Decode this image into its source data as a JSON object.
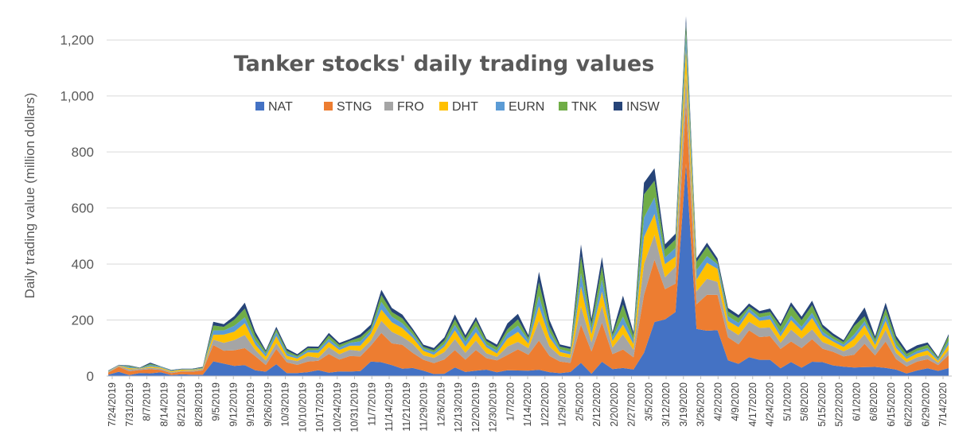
{
  "chart_data": {
    "type": "area",
    "stacked": true,
    "title": "Tanker stocks' daily trading values",
    "xlabel": "",
    "ylabel": "Daily trading value (million dollars)",
    "ylim": [
      0,
      1300
    ],
    "yticks": [
      0,
      200,
      400,
      600,
      800,
      1000,
      1200
    ],
    "ytick_labels": [
      "0",
      "200",
      "400",
      "600",
      "800",
      "1,000",
      "1,200"
    ],
    "grid": true,
    "legend_position": "top-center",
    "x_labels": [
      "7/24/2019",
      "7/31/2019",
      "8/7/2019",
      "8/14/2019",
      "8/21/2019",
      "8/28/2019",
      "9/5/2019",
      "9/12/2019",
      "9/19/2019",
      "9/26/2019",
      "10/3/2019",
      "10/10/2019",
      "10/17/2019",
      "10/24/2019",
      "10/31/2019",
      "11/7/2019",
      "11/14/2019",
      "11/21/2019",
      "11/29/2019",
      "12/6/2019",
      "12/13/2019",
      "12/20/2019",
      "12/30/2019",
      "1/7/2020",
      "1/14/2020",
      "1/22/2020",
      "1/29/2020",
      "2/5/2020",
      "2/12/2020",
      "2/20/2020",
      "2/27/2020",
      "3/5/2020",
      "3/12/2020",
      "3/19/2020",
      "3/26/2020",
      "4/2/2020",
      "4/9/2020",
      "4/17/2020",
      "4/24/2020",
      "5/1/2020",
      "5/8/2020",
      "5/15/2020",
      "5/22/2020",
      "6/1/2020",
      "6/8/2020",
      "6/15/2020",
      "6/22/2020",
      "6/29/2020",
      "7/14/2020"
    ],
    "total_values": [
      20,
      40,
      38,
      30,
      48,
      35,
      22,
      26,
      26,
      33,
      194,
      185,
      214,
      262,
      158,
      92,
      176,
      98,
      78,
      106,
      105,
      154,
      118,
      132,
      149,
      184,
      308,
      243,
      219,
      168,
      112,
      100,
      138,
      220,
      146,
      211,
      133,
      112,
      188,
      222,
      146,
      372,
      200,
      113,
      104,
      470,
      204,
      425,
      156,
      287,
      156,
      690,
      742,
      470,
      508,
      1285,
      420,
      476,
      420,
      243,
      218,
      259,
      232,
      241,
      186,
      263,
      212,
      269,
      184,
      152,
      128,
      190,
      245,
      142,
      262,
      144,
      90,
      110,
      120,
      68,
      150
    ],
    "series": [
      {
        "name": "NAT",
        "color": "#4472C4",
        "shares": [
          0.22,
          0.38,
          0.1,
          0.35,
          0.2,
          0.38,
          0.17,
          0.25,
          0.18,
          0.14,
          0.27,
          0.24,
          0.17,
          0.15,
          0.13,
          0.17,
          0.24,
          0.11,
          0.14,
          0.13,
          0.2,
          0.08,
          0.14,
          0.12,
          0.12,
          0.28,
          0.16,
          0.16,
          0.12,
          0.17,
          0.17,
          0.07,
          0.06,
          0.14,
          0.1,
          0.09,
          0.17,
          0.12,
          0.11,
          0.09,
          0.13,
          0.06,
          0.07,
          0.09,
          0.14,
          0.1,
          0.04,
          0.12,
          0.16,
          0.1,
          0.15,
          0.12,
          0.26,
          0.43,
          0.45,
          0.59,
          0.4,
          0.34,
          0.39,
          0.23,
          0.2,
          0.26,
          0.25,
          0.24,
          0.15,
          0.19,
          0.14,
          0.19,
          0.27,
          0.25,
          0.26,
          0.16,
          0.13,
          0.23,
          0.11,
          0.16,
          0.1,
          0.18,
          0.23,
          0.27,
          0.19
        ]
      },
      {
        "name": "STNG",
        "color": "#ED7D31",
        "shares": [
          0.4,
          0.44,
          0.35,
          0.37,
          0.31,
          0.25,
          0.29,
          0.37,
          0.42,
          0.47,
          0.3,
          0.25,
          0.26,
          0.23,
          0.32,
          0.26,
          0.31,
          0.39,
          0.37,
          0.36,
          0.32,
          0.43,
          0.36,
          0.42,
          0.35,
          0.31,
          0.34,
          0.32,
          0.39,
          0.32,
          0.35,
          0.39,
          0.37,
          0.28,
          0.3,
          0.35,
          0.31,
          0.38,
          0.29,
          0.34,
          0.39,
          0.28,
          0.29,
          0.37,
          0.31,
          0.29,
          0.39,
          0.33,
          0.34,
          0.23,
          0.28,
          0.3,
          0.3,
          0.23,
          0.2,
          0.17,
          0.21,
          0.27,
          0.3,
          0.34,
          0.32,
          0.37,
          0.35,
          0.35,
          0.37,
          0.28,
          0.33,
          0.3,
          0.26,
          0.32,
          0.29,
          0.24,
          0.34,
          0.29,
          0.36,
          0.26,
          0.28,
          0.29,
          0.27,
          0.3,
          0.31
        ]
      },
      {
        "name": "FRO",
        "color": "#A5A5A5",
        "shares": [
          0.12,
          0.09,
          0.18,
          0.13,
          0.11,
          0.13,
          0.17,
          0.09,
          0.14,
          0.13,
          0.1,
          0.15,
          0.17,
          0.18,
          0.14,
          0.17,
          0.12,
          0.12,
          0.17,
          0.18,
          0.1,
          0.16,
          0.16,
          0.17,
          0.13,
          0.1,
          0.14,
          0.17,
          0.13,
          0.19,
          0.14,
          0.19,
          0.19,
          0.18,
          0.17,
          0.16,
          0.13,
          0.11,
          0.16,
          0.12,
          0.16,
          0.19,
          0.17,
          0.17,
          0.17,
          0.14,
          0.16,
          0.14,
          0.15,
          0.19,
          0.17,
          0.16,
          0.12,
          0.09,
          0.12,
          0.08,
          0.11,
          0.12,
          0.11,
          0.13,
          0.15,
          0.12,
          0.14,
          0.13,
          0.12,
          0.16,
          0.16,
          0.13,
          0.13,
          0.13,
          0.14,
          0.16,
          0.14,
          0.14,
          0.16,
          0.15,
          0.17,
          0.14,
          0.13,
          0.13,
          0.12
        ]
      },
      {
        "name": "DHT",
        "color": "#FFC000",
        "shares": [
          0.05,
          0.03,
          0.12,
          0.04,
          0.09,
          0.1,
          0.15,
          0.16,
          0.09,
          0.08,
          0.09,
          0.16,
          0.14,
          0.16,
          0.12,
          0.15,
          0.14,
          0.12,
          0.12,
          0.13,
          0.17,
          0.12,
          0.13,
          0.11,
          0.13,
          0.13,
          0.13,
          0.14,
          0.14,
          0.13,
          0.14,
          0.11,
          0.14,
          0.14,
          0.15,
          0.14,
          0.16,
          0.11,
          0.15,
          0.16,
          0.11,
          0.14,
          0.16,
          0.13,
          0.12,
          0.15,
          0.14,
          0.12,
          0.15,
          0.12,
          0.13,
          0.14,
          0.1,
          0.1,
          0.07,
          0.07,
          0.1,
          0.12,
          0.11,
          0.11,
          0.13,
          0.13,
          0.11,
          0.12,
          0.12,
          0.13,
          0.13,
          0.15,
          0.13,
          0.11,
          0.12,
          0.14,
          0.13,
          0.12,
          0.12,
          0.12,
          0.13,
          0.12,
          0.13,
          0.1,
          0.13
        ]
      },
      {
        "name": "EURN",
        "color": "#5B9BD5",
        "shares": [
          0.09,
          0.03,
          0.12,
          0.04,
          0.1,
          0.1,
          0.09,
          0.06,
          0.06,
          0.05,
          0.08,
          0.08,
          0.1,
          0.08,
          0.09,
          0.11,
          0.08,
          0.09,
          0.07,
          0.07,
          0.09,
          0.07,
          0.07,
          0.08,
          0.1,
          0.06,
          0.09,
          0.08,
          0.08,
          0.07,
          0.08,
          0.09,
          0.07,
          0.09,
          0.11,
          0.1,
          0.08,
          0.09,
          0.1,
          0.1,
          0.08,
          0.1,
          0.1,
          0.09,
          0.09,
          0.1,
          0.09,
          0.1,
          0.08,
          0.1,
          0.09,
          0.1,
          0.08,
          0.05,
          0.06,
          0.04,
          0.08,
          0.05,
          0.04,
          0.07,
          0.07,
          0.05,
          0.05,
          0.06,
          0.07,
          0.06,
          0.07,
          0.07,
          0.07,
          0.06,
          0.07,
          0.08,
          0.06,
          0.07,
          0.08,
          0.09,
          0.08,
          0.08,
          0.07,
          0.08,
          0.08
        ]
      },
      {
        "name": "TNK",
        "color": "#70AD47",
        "shares": [
          0.05,
          0.01,
          0.07,
          0.03,
          0.1,
          0.01,
          0.06,
          0.03,
          0.06,
          0.06,
          0.09,
          0.07,
          0.1,
          0.12,
          0.11,
          0.08,
          0.06,
          0.09,
          0.06,
          0.07,
          0.06,
          0.08,
          0.08,
          0.05,
          0.1,
          0.05,
          0.08,
          0.07,
          0.08,
          0.07,
          0.05,
          0.07,
          0.09,
          0.09,
          0.09,
          0.1,
          0.09,
          0.11,
          0.08,
          0.1,
          0.06,
          0.13,
          0.1,
          0.08,
          0.1,
          0.13,
          0.09,
          0.11,
          0.06,
          0.15,
          0.1,
          0.12,
          0.08,
          0.06,
          0.06,
          0.03,
          0.07,
          0.07,
          0.02,
          0.07,
          0.08,
          0.03,
          0.06,
          0.05,
          0.12,
          0.13,
          0.11,
          0.1,
          0.08,
          0.07,
          0.07,
          0.16,
          0.07,
          0.08,
          0.09,
          0.13,
          0.12,
          0.09,
          0.1,
          0.06,
          0.12
        ]
      },
      {
        "name": "INSW",
        "color": "#264478",
        "shares": [
          0.07,
          0.02,
          0.06,
          0.04,
          0.09,
          0.03,
          0.07,
          0.04,
          0.05,
          0.07,
          0.07,
          0.05,
          0.06,
          0.08,
          0.09,
          0.06,
          0.05,
          0.08,
          0.07,
          0.06,
          0.06,
          0.06,
          0.06,
          0.05,
          0.07,
          0.07,
          0.06,
          0.06,
          0.06,
          0.05,
          0.07,
          0.08,
          0.08,
          0.08,
          0.08,
          0.06,
          0.06,
          0.08,
          0.11,
          0.09,
          0.07,
          0.1,
          0.11,
          0.07,
          0.07,
          0.09,
          0.09,
          0.08,
          0.06,
          0.11,
          0.08,
          0.06,
          0.06,
          0.04,
          0.04,
          0.02,
          0.03,
          0.03,
          0.03,
          0.05,
          0.05,
          0.04,
          0.04,
          0.05,
          0.05,
          0.05,
          0.06,
          0.06,
          0.06,
          0.06,
          0.05,
          0.06,
          0.13,
          0.07,
          0.08,
          0.09,
          0.12,
          0.1,
          0.07,
          0.06,
          0.05
        ]
      }
    ]
  }
}
